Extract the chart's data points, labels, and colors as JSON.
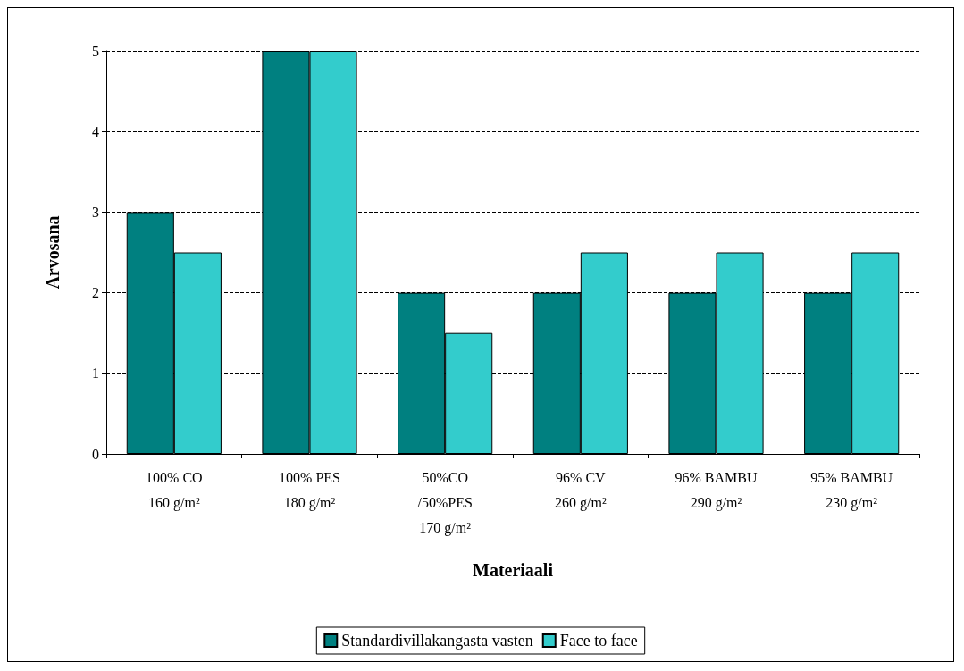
{
  "chart_data": {
    "type": "bar",
    "xlabel": "Materiaali",
    "ylabel": "Arvosana",
    "categories": [
      "100% CO\n160 g/m²",
      "100% PES\n180 g/m²",
      "50%CO\n/50%PES\n170 g/m²",
      "96% CV\n260 g/m²",
      "96% BAMBU\n290 g/m²",
      "95% BAMBU\n230 g/m²"
    ],
    "series": [
      {
        "name": "Standardivillakangasta vasten",
        "color": "#008080",
        "values": [
          3,
          5,
          2,
          2,
          2,
          2
        ]
      },
      {
        "name": "Face to face",
        "color": "#33cccc",
        "values": [
          2.5,
          5,
          1.5,
          2.5,
          2.5,
          2.5
        ]
      }
    ],
    "ylim": [
      0,
      5
    ],
    "yticks": [
      0,
      1,
      2,
      3,
      4,
      5
    ],
    "grid": "y",
    "legend": "bottom"
  }
}
